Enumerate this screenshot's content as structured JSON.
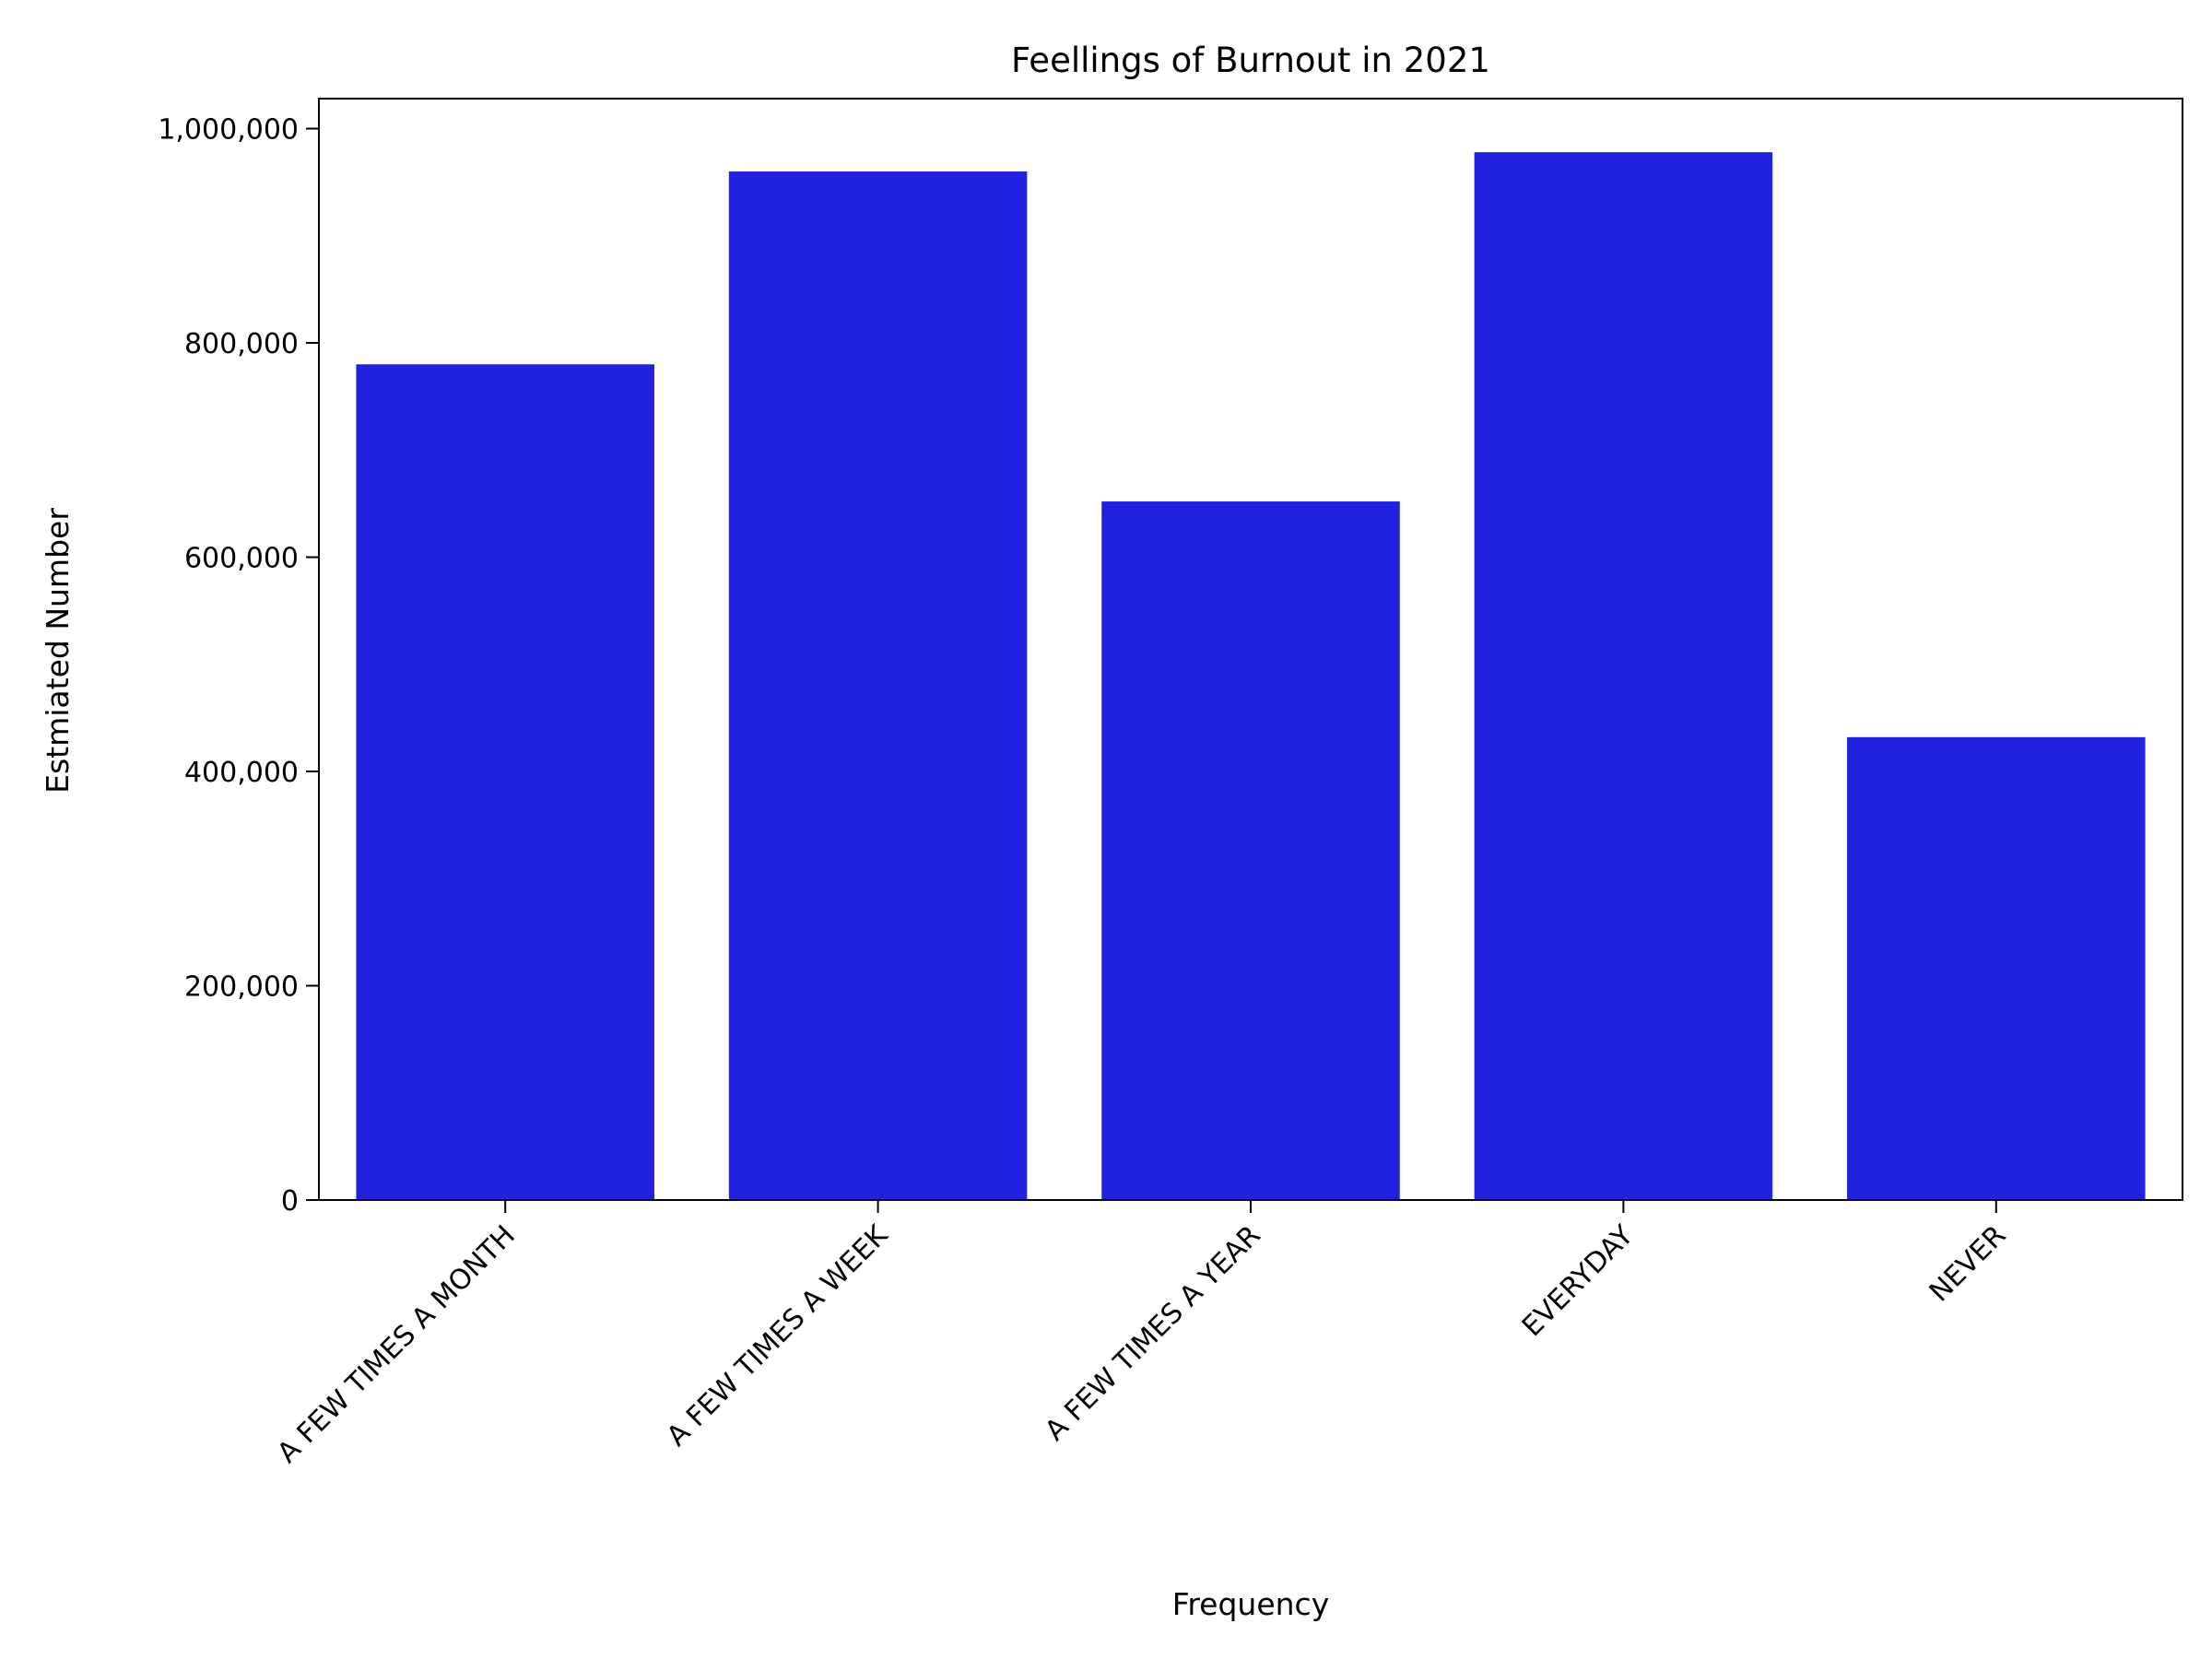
{
  "chart_data": {
    "type": "bar",
    "title": "Feellings of Burnout in 2021",
    "xlabel": "Frequency",
    "ylabel": "Estmiated Number",
    "categories": [
      "A FEW TIMES A MONTH",
      "A FEW TIMES A WEEK",
      "A FEW TIMES A YEAR",
      "EVERYDAY",
      "NEVER"
    ],
    "values": [
      780000,
      960000,
      652000,
      978000,
      432000
    ],
    "ylim": [
      0,
      1028000
    ],
    "yticks": [
      0,
      200000,
      400000,
      600000,
      800000,
      1000000
    ],
    "ytick_labels": [
      "0",
      "200,000",
      "400,000",
      "600,000",
      "800,000",
      "1,000,000"
    ],
    "bar_color": "#2121df",
    "grid": false,
    "legend": "none"
  }
}
